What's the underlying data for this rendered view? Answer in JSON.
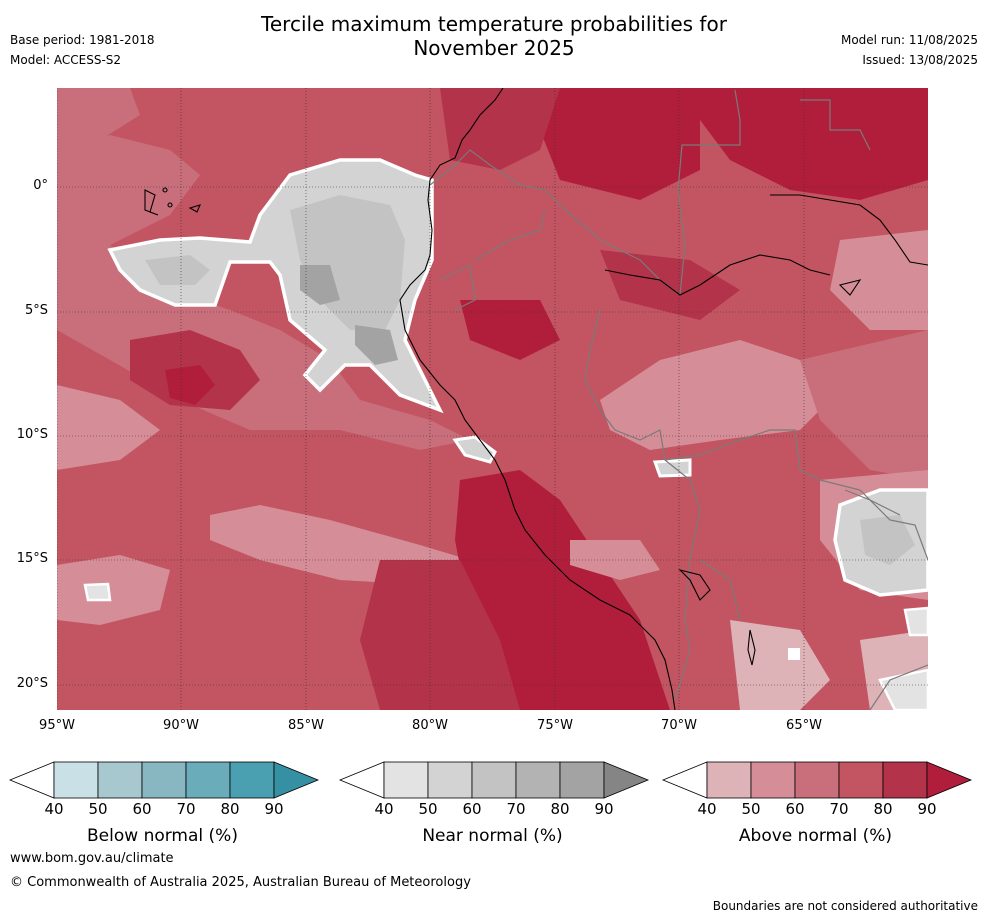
{
  "title_line1": "Tercile maximum temperature probabilities for",
  "title_line2": "November 2025",
  "base_period": "Base period: 1981-2018",
  "model": "Model: ACCESS-S2",
  "model_run": "Model run: 11/08/2025",
  "issued": "Issued: 13/08/2025",
  "lat_labels": [
    "0°",
    "5°S",
    "10°S",
    "15°S",
    "20°S"
  ],
  "lon_labels": [
    "95°W",
    "90°W",
    "85°W",
    "80°W",
    "75°W",
    "70°W",
    "65°W"
  ],
  "colorbars": [
    {
      "title": "Below normal (%)",
      "ticks": [
        "40",
        "50",
        "60",
        "70",
        "80",
        "90"
      ],
      "colors": [
        "#ffffff",
        "#c9e1e6",
        "#a6c8ce",
        "#88b6c1",
        "#6aacb9",
        "#4aa0b0",
        "#3690a3"
      ]
    },
    {
      "title": "Near normal (%)",
      "ticks": [
        "40",
        "50",
        "60",
        "70",
        "80",
        "90"
      ],
      "colors": [
        "#ffffff",
        "#e3e3e3",
        "#d3d3d3",
        "#c3c3c3",
        "#b3b3b3",
        "#a3a3a3",
        "#858585"
      ]
    },
    {
      "title": "Above normal (%)",
      "ticks": [
        "40",
        "50",
        "60",
        "70",
        "80",
        "90"
      ],
      "colors": [
        "#ffffff",
        "#deb3b8",
        "#d58e98",
        "#c96f7b",
        "#c25561",
        "#b2334a",
        "#b11e3c"
      ]
    }
  ],
  "website": "www.bom.gov.au/climate",
  "copyright": "© Commonwealth of Australia 2025, Australian Bureau of Meteorology",
  "disclaimer": "Boundaries are not considered authoritative"
}
